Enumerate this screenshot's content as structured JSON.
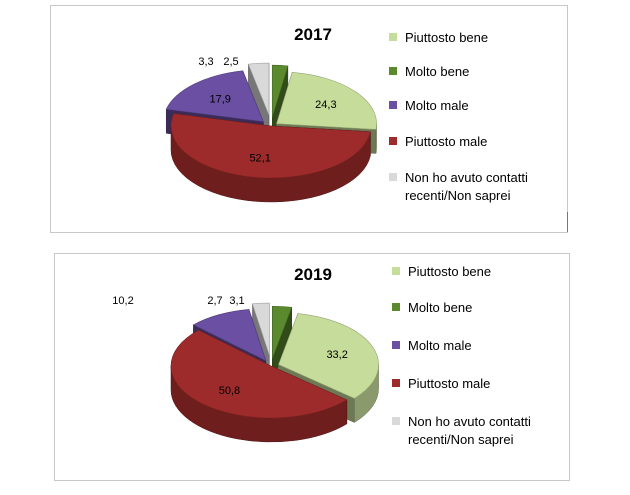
{
  "legend_order": [
    1,
    0,
    3,
    2,
    4
  ],
  "categories": [
    "Molto bene",
    "Piuttosto bene",
    "Piuttosto male",
    "Molto male",
    "Non ho avuto contatti recenti/Non saprei"
  ],
  "legend_lines": [
    [
      "Molto bene"
    ],
    [
      "Piuttosto bene"
    ],
    [
      "Piuttosto male"
    ],
    [
      "Molto male"
    ],
    [
      "Non ho avuto contatti",
      "recenti/Non saprei"
    ]
  ],
  "colors": {
    "Molto bene": "#5b8a2e",
    "Piuttosto bene": "#c6dc9a",
    "Piuttosto male": "#9e2b2b",
    "Molto male": "#6a4fa2",
    "Non ho avuto contatti recenti/Non saprei": "#d9d9d9"
  },
  "chart_data": [
    {
      "type": "pie",
      "style": "3d-exploded",
      "title": "2017",
      "categories": [
        "Molto bene",
        "Piuttosto bene",
        "Piuttosto male",
        "Molto male",
        "Non ho avuto contatti recenti/Non saprei"
      ],
      "values": [
        2.5,
        24.3,
        52.1,
        17.9,
        3.3
      ],
      "labels": [
        "2,5",
        "24,3",
        "52,1",
        "17,9",
        "3,3"
      ],
      "legend": "right"
    },
    {
      "type": "pie",
      "style": "3d-exploded",
      "title": "2019",
      "categories": [
        "Molto bene",
        "Piuttosto bene",
        "Piuttosto male",
        "Molto male",
        "Non ho avuto contatti recenti/Non saprei"
      ],
      "values": [
        3.1,
        33.2,
        50.8,
        10.2,
        2.7
      ],
      "labels": [
        "3,1",
        "33,2",
        "50,8",
        "10,2",
        "2,7"
      ],
      "legend": "right"
    }
  ]
}
